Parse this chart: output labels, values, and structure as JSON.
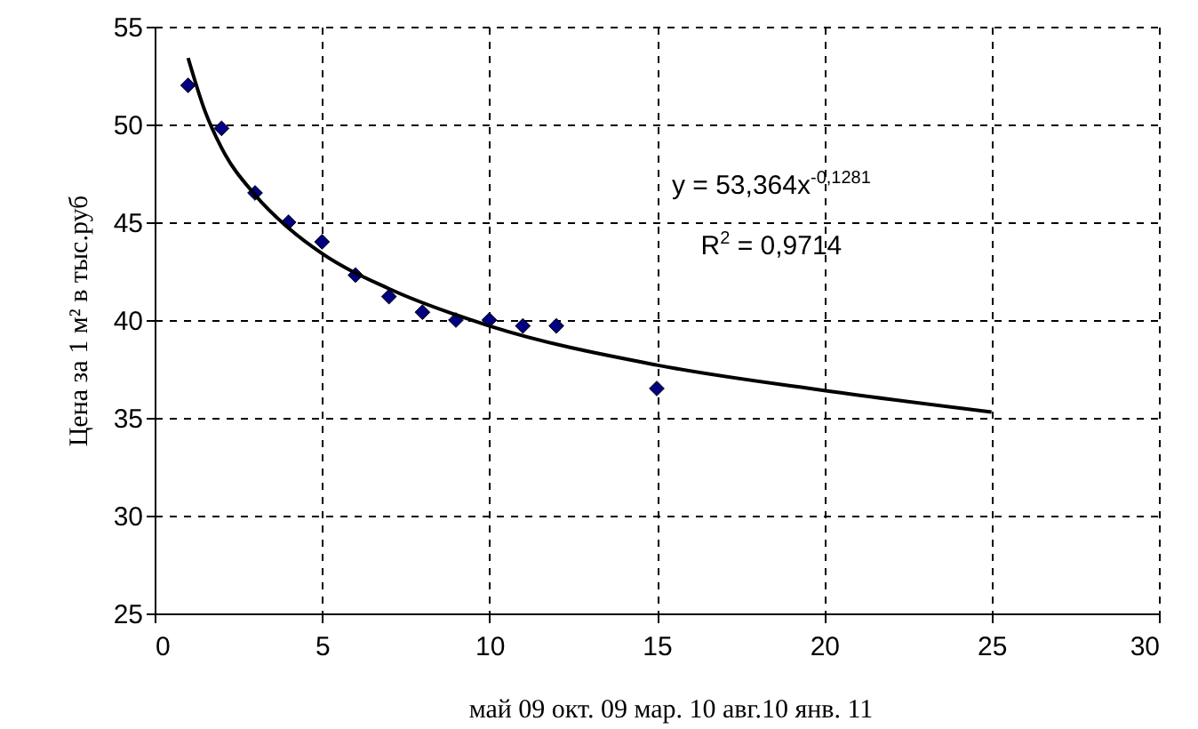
{
  "chart_data": {
    "type": "scatter",
    "xlabel": "май 09    окт. 09    мар. 10    авг.10   янв. 11",
    "ylabel": "Цена за 1 м² в тыс.руб",
    "annotations": [
      "y = 53,364x$^{-0,1281}$",
      "R$^{2}$ = 0,9714"
    ],
    "series": [
      {
        "color": "#000080",
        "marker": "diamond",
        "x": [
          1,
          2,
          3,
          4,
          5,
          6,
          7,
          8,
          9,
          10,
          11,
          12,
          15
        ],
        "values": [
          52,
          49.8,
          46.5,
          45,
          44,
          42.3,
          41.2,
          40.4,
          40,
          40,
          39.7,
          39.7,
          36.5
        ]
      },
      {
        "type": "line",
        "color": "#000000",
        "x": [
          1,
          1.5,
          2,
          3,
          4,
          5,
          7,
          10,
          15,
          20,
          25
        ],
        "values": [
          53.4,
          50.7,
          48.8,
          46.4,
          44.7,
          43.4,
          41.6,
          39.7,
          37.7,
          36.4,
          35.3
        ]
      }
    ],
    "xlim": [
      0,
      30
    ],
    "xticks": [
      0,
      5,
      10,
      15,
      20,
      25,
      30
    ],
    "ylim": [
      25,
      55
    ],
    "yticks": [
      25,
      30,
      35,
      40,
      45,
      50,
      55
    ],
    "grid": true
  }
}
